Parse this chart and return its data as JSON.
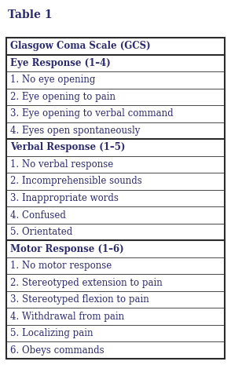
{
  "title": "Table 1",
  "rows": [
    {
      "text": "Glasgow Coma Scale (GCS)",
      "bold": true
    },
    {
      "text": "Eye Response (1–4)",
      "bold": true
    },
    {
      "text": "1. No eye opening",
      "bold": false
    },
    {
      "text": "2. Eye opening to pain",
      "bold": false
    },
    {
      "text": "3. Eye opening to verbal command",
      "bold": false
    },
    {
      "text": "4. Eyes open spontaneously",
      "bold": false
    },
    {
      "text": "Verbal Response (1–5)",
      "bold": true
    },
    {
      "text": "1. No verbal response",
      "bold": false
    },
    {
      "text": "2. Incomprehensible sounds",
      "bold": false
    },
    {
      "text": "3. Inappropriate words",
      "bold": false
    },
    {
      "text": "4. Confused",
      "bold": false
    },
    {
      "text": "5. Orientated",
      "bold": false
    },
    {
      "text": "Motor Response (1–6)",
      "bold": true
    },
    {
      "text": "1. No motor response",
      "bold": false
    },
    {
      "text": "2. Stereotyped extension to pain",
      "bold": false
    },
    {
      "text": "3. Stereotyped flexion to pain",
      "bold": false
    },
    {
      "text": "4. Withdrawal from pain",
      "bold": false
    },
    {
      "text": "5. Localizing pain",
      "bold": false
    },
    {
      "text": "6. Obeys commands",
      "bold": false
    }
  ],
  "background_color": "#ffffff",
  "text_color": "#2b2b6e",
  "border_color": "#2b2b2b",
  "title_fontsize": 10,
  "row_fontsize": 8.5,
  "fig_width": 2.94,
  "fig_height": 4.65,
  "dpi": 100
}
